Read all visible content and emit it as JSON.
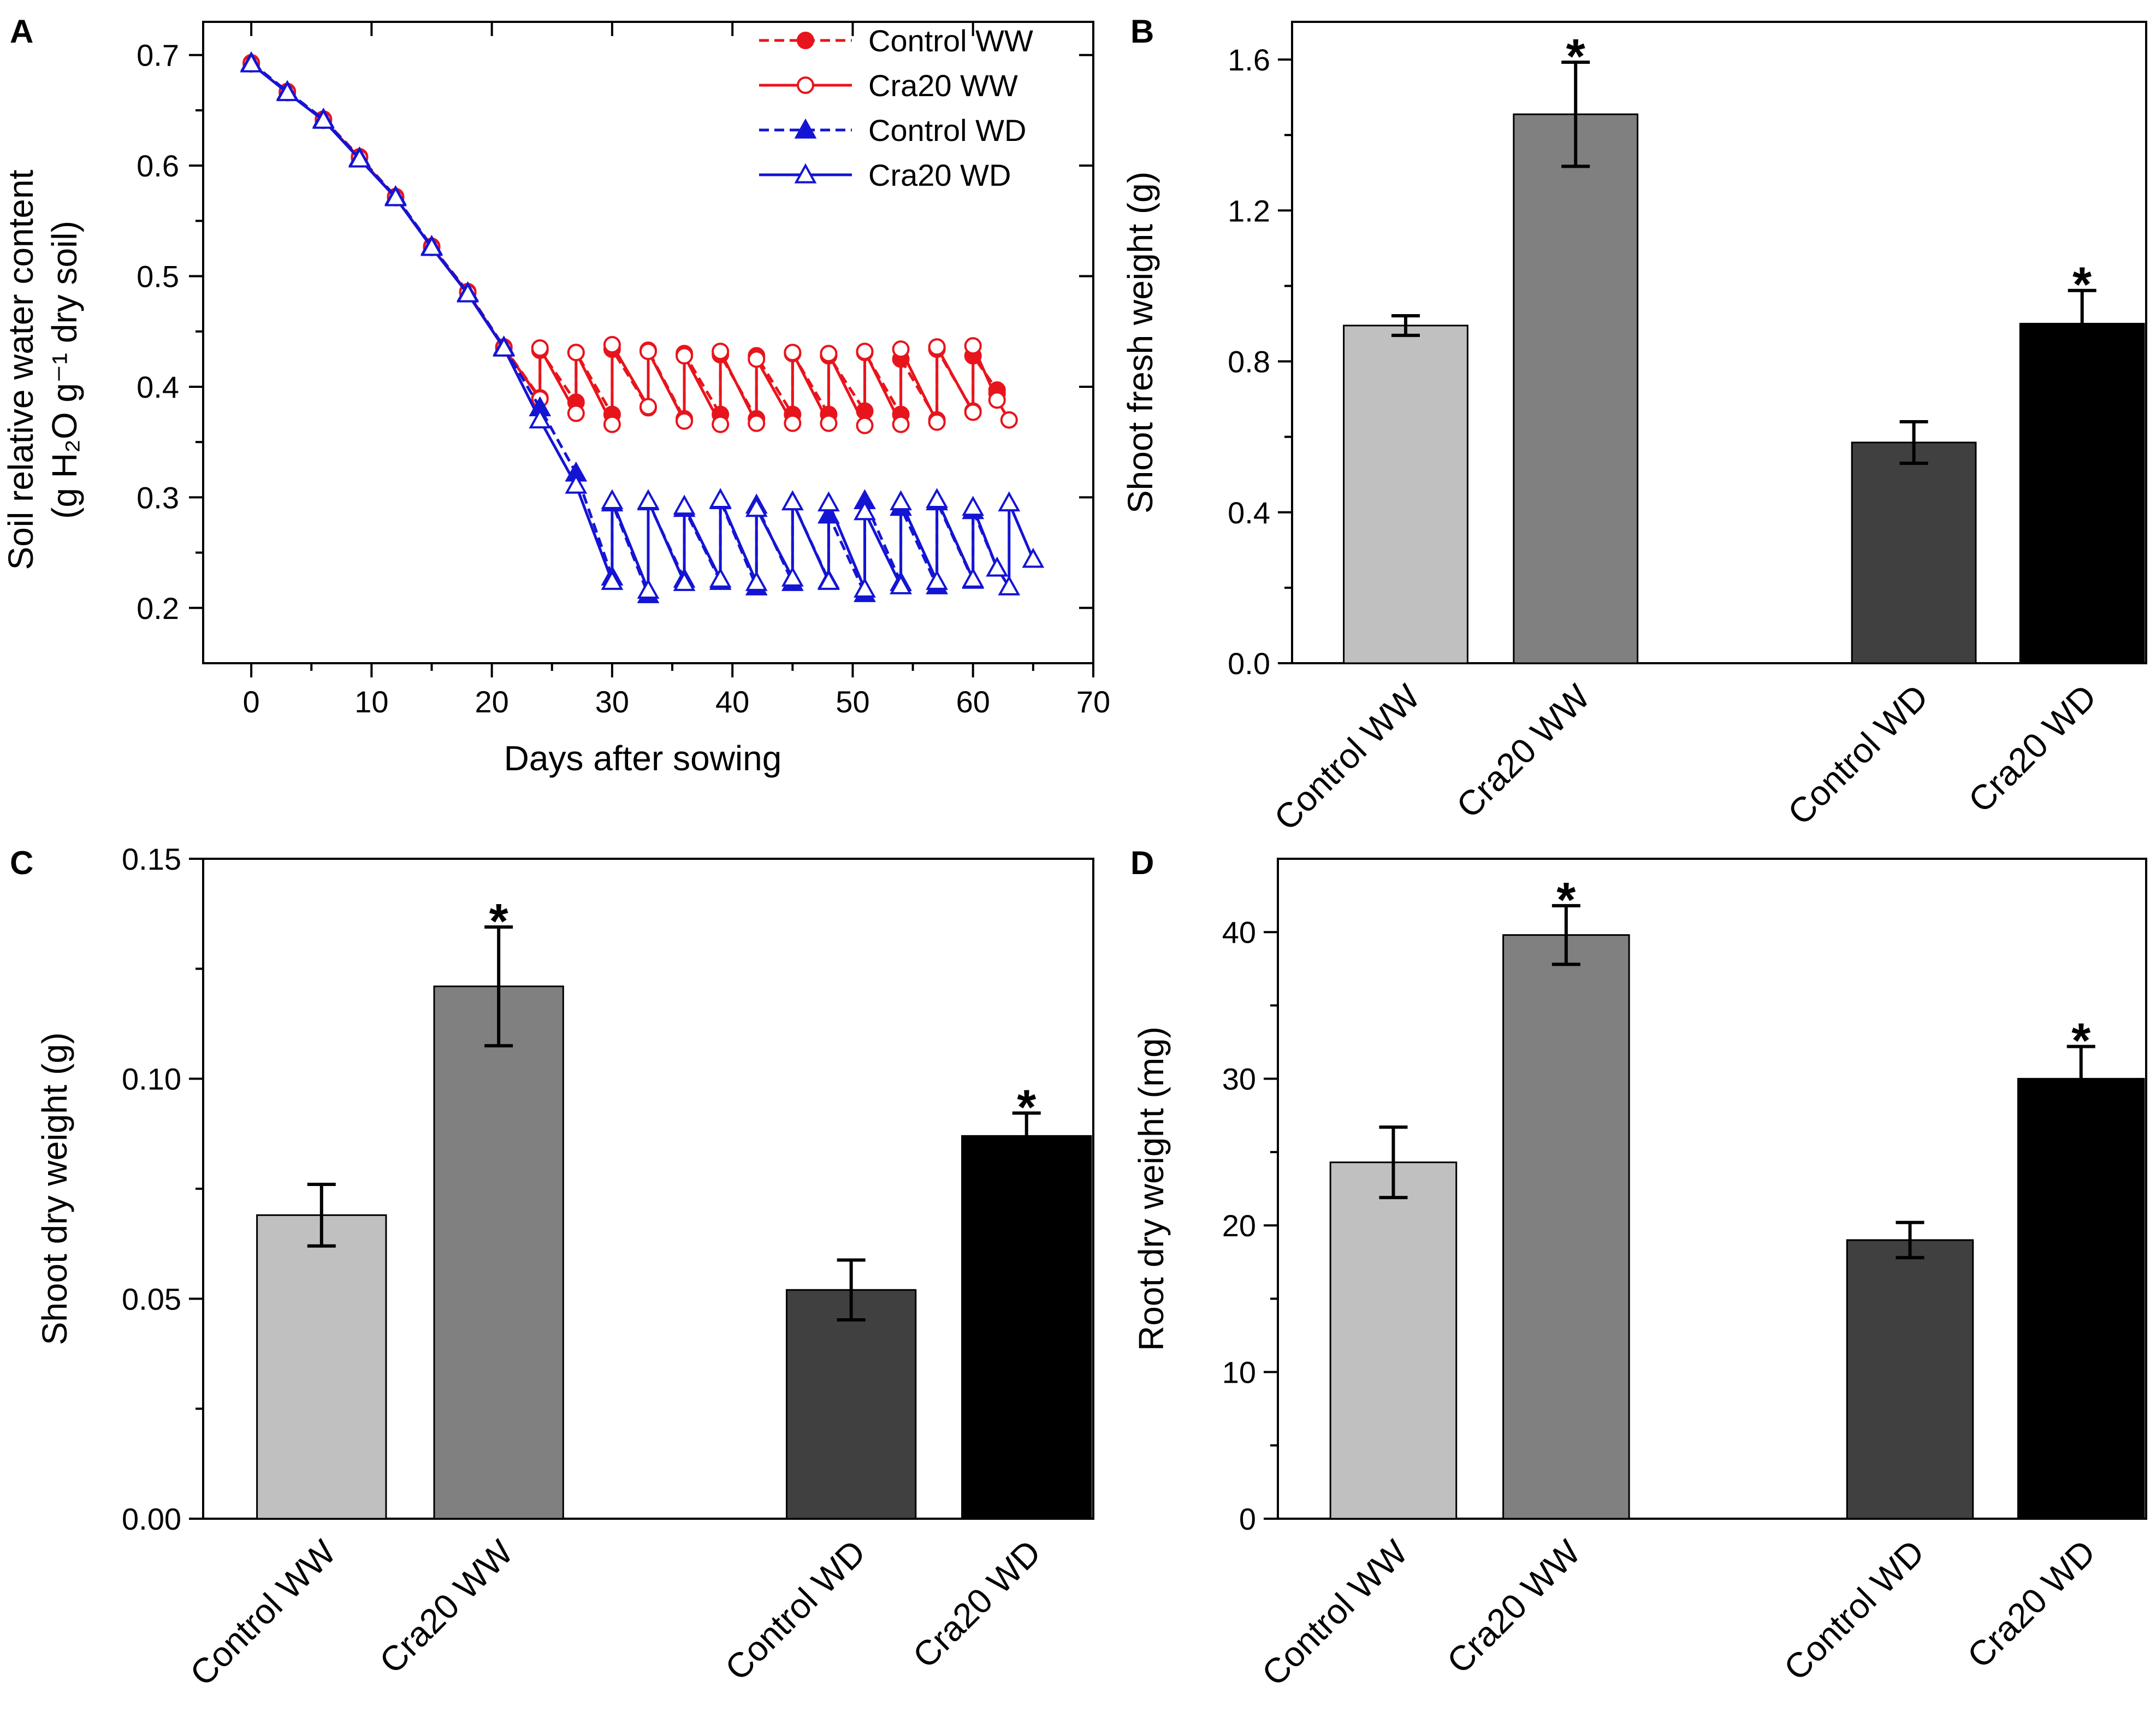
{
  "chart_data": [
    {
      "panel": "A",
      "type": "line",
      "xlabel": "Days after sowing",
      "ylabel_line1": "Soil relative water content",
      "ylabel_line2": "(g H₂O g⁻¹ dry soil)",
      "xlim": [
        -4,
        70
      ],
      "ylim": [
        0.15,
        0.73
      ],
      "xticks": [
        0,
        10,
        20,
        30,
        40,
        50,
        60,
        70
      ],
      "yticks": [
        0.2,
        0.3,
        0.4,
        0.5,
        0.6,
        0.7
      ],
      "xtick_labels": [
        "0",
        "10",
        "20",
        "30",
        "40",
        "50",
        "60",
        "70"
      ],
      "ytick_labels": [
        "0.2",
        "0.3",
        "0.4",
        "0.5",
        "0.6",
        "0.7"
      ],
      "legend_position": "top-right",
      "series": [
        {
          "name": "Control WW",
          "color": "#e8141c",
          "dashed": true,
          "marker": "circle",
          "filled": true,
          "x": [
            0,
            3,
            6,
            9,
            12,
            15,
            18,
            21,
            24,
            24,
            27,
            27,
            30,
            30,
            33,
            33,
            36,
            36,
            39,
            39,
            42,
            42,
            45,
            45,
            48,
            48,
            51,
            51,
            54,
            54,
            57,
            57,
            60,
            60,
            62,
            62
          ],
          "y": [
            0.693,
            0.667,
            0.642,
            0.608,
            0.572,
            0.527,
            0.486,
            0.436,
            0.39,
            0.433,
            0.386,
            0.431,
            0.375,
            0.434,
            0.381,
            0.433,
            0.371,
            0.43,
            0.375,
            0.429,
            0.371,
            0.428,
            0.375,
            0.43,
            0.375,
            0.428,
            0.378,
            0.431,
            0.375,
            0.425,
            0.37,
            0.434,
            0.378,
            0.428,
            0.397,
            0.394
          ]
        },
        {
          "name": "Cra20 WW",
          "color": "#e8141c",
          "dashed": false,
          "marker": "circle",
          "filled": false,
          "x": [
            0,
            3,
            6,
            9,
            12,
            15,
            18,
            21,
            24,
            24,
            27,
            27,
            30,
            30,
            33,
            33,
            36,
            36,
            39,
            39,
            42,
            42,
            45,
            45,
            48,
            48,
            51,
            51,
            54,
            54,
            57,
            57,
            60,
            60,
            62,
            63
          ],
          "y": [
            0.692,
            0.666,
            0.641,
            0.607,
            0.571,
            0.526,
            0.485,
            0.435,
            0.389,
            0.435,
            0.376,
            0.431,
            0.366,
            0.438,
            0.382,
            0.432,
            0.369,
            0.428,
            0.366,
            0.432,
            0.367,
            0.425,
            0.367,
            0.431,
            0.367,
            0.43,
            0.365,
            0.432,
            0.366,
            0.434,
            0.368,
            0.436,
            0.377,
            0.437,
            0.388,
            0.37
          ]
        },
        {
          "name": "Control WD",
          "color": "#1414d4",
          "dashed": true,
          "marker": "triangle",
          "filled": true,
          "x": [
            0,
            3,
            6,
            9,
            12,
            15,
            18,
            21,
            24,
            27,
            30,
            30,
            33,
            33,
            36,
            36,
            39,
            39,
            42,
            42,
            45,
            45,
            48,
            48,
            51,
            51,
            54,
            54,
            57,
            57,
            60,
            60,
            62
          ],
          "y": [
            0.693,
            0.667,
            0.642,
            0.607,
            0.572,
            0.527,
            0.485,
            0.436,
            0.381,
            0.322,
            0.228,
            0.295,
            0.212,
            0.296,
            0.226,
            0.29,
            0.224,
            0.297,
            0.219,
            0.293,
            0.223,
            0.296,
            0.225,
            0.284,
            0.213,
            0.297,
            0.223,
            0.291,
            0.22,
            0.296,
            0.225,
            0.288,
            0.236
          ]
        },
        {
          "name": "Cra20 WD",
          "color": "#1414d4",
          "dashed": false,
          "marker": "triangle",
          "filled": false,
          "x": [
            0,
            3,
            6,
            9,
            12,
            15,
            18,
            21,
            24,
            27,
            30,
            30,
            33,
            33,
            36,
            36,
            39,
            39,
            42,
            42,
            45,
            45,
            48,
            48,
            51,
            51,
            54,
            54,
            57,
            57,
            60,
            60,
            62,
            63,
            63,
            65
          ],
          "y": [
            0.692,
            0.666,
            0.641,
            0.606,
            0.571,
            0.526,
            0.484,
            0.435,
            0.37,
            0.311,
            0.224,
            0.297,
            0.216,
            0.297,
            0.223,
            0.292,
            0.226,
            0.298,
            0.223,
            0.29,
            0.227,
            0.296,
            0.224,
            0.295,
            0.217,
            0.287,
            0.22,
            0.296,
            0.224,
            0.298,
            0.226,
            0.291,
            0.236,
            0.219,
            0.295,
            0.244
          ]
        }
      ]
    },
    {
      "panel": "B",
      "type": "bar",
      "ylabel": "Shoot fresh weight (g)",
      "ylim": [
        0,
        1.7
      ],
      "yticks": [
        0,
        0.4,
        0.8,
        1.2,
        1.6
      ],
      "ytick_labels": [
        "0.0",
        "0.4",
        "0.8",
        "1.2",
        "1.6"
      ],
      "categories": [
        "Control WW",
        "Cra20 WW",
        "Control WD",
        "Cra20 WD"
      ],
      "values": [
        0.895,
        1.455,
        0.585,
        0.9
      ],
      "errors": [
        0.026,
        0.138,
        0.055,
        0.088
      ],
      "colors": [
        "#c0c0c0",
        "#808080",
        "#404040",
        "#000000"
      ],
      "significance": [
        "",
        "*",
        "",
        "*"
      ]
    },
    {
      "panel": "C",
      "type": "bar",
      "ylabel": "Shoot dry weight (g)",
      "ylim": [
        0,
        0.15
      ],
      "yticks": [
        0,
        0.05,
        0.1,
        0.15
      ],
      "ytick_labels": [
        "0.00",
        "0.05",
        "0.10",
        "0.15"
      ],
      "categories": [
        "Control WW",
        "Cra20 WW",
        "Control WD",
        "Cra20 WD"
      ],
      "values": [
        0.069,
        0.121,
        0.052,
        0.087
      ],
      "errors": [
        0.007,
        0.0135,
        0.0068,
        0.0052
      ],
      "colors": [
        "#c0c0c0",
        "#808080",
        "#404040",
        "#000000"
      ],
      "significance": [
        "",
        "*",
        "",
        "*"
      ]
    },
    {
      "panel": "D",
      "type": "bar",
      "ylabel": "Root dry weight (mg)",
      "ylim": [
        0,
        45
      ],
      "yticks": [
        0,
        10,
        20,
        30,
        40
      ],
      "ytick_labels": [
        "0",
        "10",
        "20",
        "30",
        "40"
      ],
      "categories": [
        "Control WW",
        "Cra20 WW",
        "Control WD",
        "Cra20 WD"
      ],
      "values": [
        24.3,
        39.8,
        19.0,
        30.0
      ],
      "errors": [
        2.4,
        2.0,
        1.2,
        2.2
      ],
      "colors": [
        "#c0c0c0",
        "#808080",
        "#404040",
        "#000000"
      ],
      "significance": [
        "",
        "*",
        "",
        "*"
      ]
    }
  ]
}
